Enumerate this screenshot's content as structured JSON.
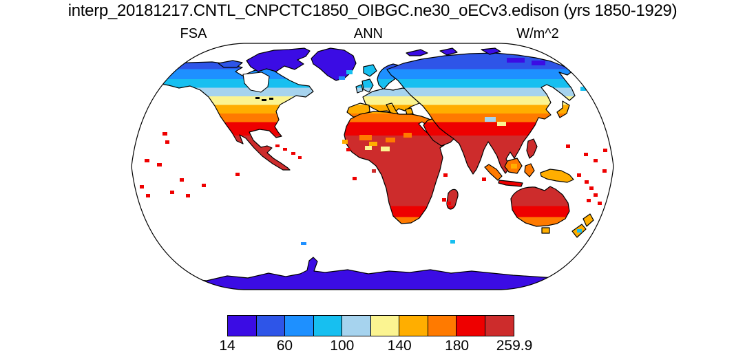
{
  "header": {
    "title": "interp_20181217.CNTL_CNPCTC1850_OIBGC.ne30_oECv3.edison (yrs 1850-1929)",
    "left_label": "FSA",
    "center_label": "ANN",
    "right_label": "W/m^2"
  },
  "chart_data": {
    "type": "heatmap",
    "title": "interp_20181217.CNTL_CNPCTC1850_OIBGC.ne30_oECv3.edison (yrs 1850-1929)",
    "variable": "FSA",
    "season": "ANN",
    "units": "W/m^2",
    "projection": "robinson",
    "extent": "global",
    "ocean": "masked white",
    "description": "Annual-mean absorbed solar flux shown over land and ice only; values rise from ~14 W/m^2 at the poles (violet/blue, Greenland and Antarctica) through cyan, light blue, yellow, amber and orange in mid-latitudes to red/dark-red (>180 W/m^2) in the subtropics and tropics.",
    "colorbar": {
      "min": 14,
      "max": 259.9,
      "n_boxes": 10,
      "colors": [
        "#3B0CE4",
        "#2E55E8",
        "#1E90FF",
        "#17BFF0",
        "#A6D3EE",
        "#FBF491",
        "#FFAE00",
        "#FF7A00",
        "#EE0000",
        "#CD2C2C"
      ],
      "tick_labels": [
        "14",
        "60",
        "100",
        "140",
        "180",
        "259.9"
      ],
      "tick_boundary_indices": [
        0,
        2,
        4,
        6,
        8,
        10
      ],
      "position": "bottom-horizontal"
    }
  }
}
